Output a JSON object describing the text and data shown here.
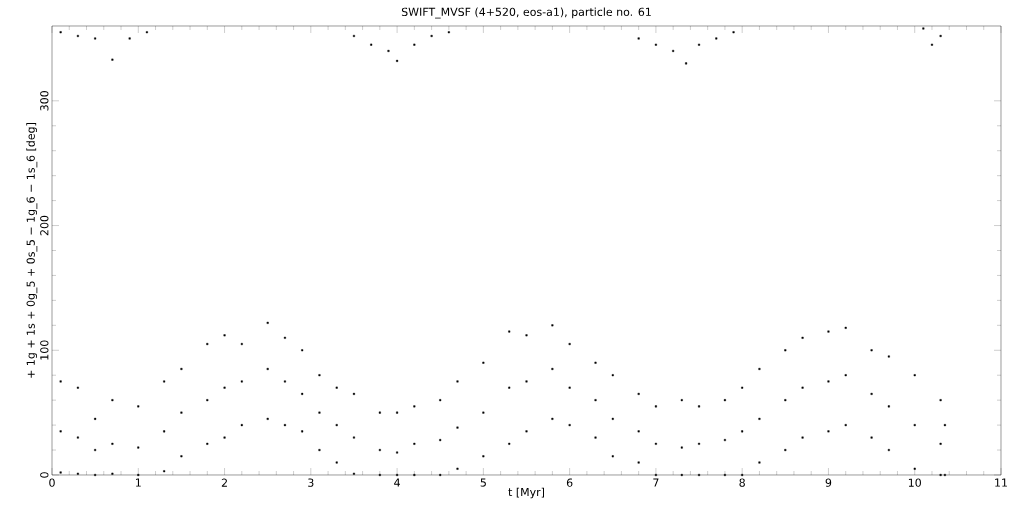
{
  "chart_data": {
    "type": "scatter",
    "title": "SWIFT_MVSF (4+520, eos-a1), particle no. 61",
    "xlabel": "t [Myr]",
    "ylabel": "+ 1g + 1s + 0g_5 + 0s_5 − 1g_6 − 1s_6 [deg]",
    "x": [
      0.1,
      0.1,
      0.1,
      0.3,
      0.3,
      0.3,
      0.5,
      0.5,
      0.5,
      0.7,
      0.7,
      0.7,
      1.0,
      1.0,
      1.0,
      1.3,
      1.3,
      1.3,
      1.5,
      1.5,
      1.5,
      1.8,
      1.8,
      1.8,
      2.0,
      2.0,
      2.0,
      2.2,
      2.2,
      2.2,
      2.5,
      2.5,
      2.5,
      2.7,
      2.7,
      2.7,
      2.9,
      2.9,
      2.9,
      3.1,
      3.1,
      3.1,
      3.3,
      3.3,
      3.3,
      3.5,
      3.5,
      3.5,
      3.8,
      3.8,
      3.8,
      4.0,
      4.0,
      4.0,
      4.2,
      4.2,
      4.2,
      4.5,
      4.5,
      4.5,
      4.7,
      4.7,
      4.7,
      5.0,
      5.0,
      5.0,
      5.3,
      5.3,
      5.3,
      5.5,
      5.5,
      5.5,
      5.8,
      5.8,
      5.8,
      6.0,
      6.0,
      6.0,
      6.3,
      6.3,
      6.3,
      6.5,
      6.5,
      6.5,
      6.8,
      6.8,
      6.8,
      7.0,
      7.0,
      7.0,
      7.3,
      7.3,
      7.3,
      7.5,
      7.5,
      7.5,
      7.8,
      7.8,
      7.8,
      8.0,
      8.0,
      8.0,
      8.2,
      8.2,
      8.2,
      8.5,
      8.5,
      8.5,
      8.7,
      8.7,
      8.7,
      9.0,
      9.0,
      9.0,
      9.2,
      9.2,
      9.2,
      9.5,
      9.5,
      9.5,
      9.7,
      9.7,
      9.7,
      10.0,
      10.0,
      10.0,
      10.3,
      10.3,
      10.3,
      10.35,
      10.35,
      0.1,
      0.3,
      0.5,
      0.7,
      0.9,
      1.1,
      3.5,
      3.7,
      3.9,
      4.0,
      4.2,
      4.4,
      4.6,
      6.8,
      7.0,
      7.2,
      7.35,
      7.5,
      7.7,
      7.9,
      10.1,
      10.2,
      10.3
    ],
    "values": [
      2,
      35,
      75,
      1,
      30,
      70,
      0,
      20,
      45,
      1,
      25,
      60,
      0,
      22,
      55,
      3,
      35,
      75,
      15,
      50,
      85,
      25,
      60,
      105,
      30,
      70,
      112,
      40,
      75,
      105,
      45,
      85,
      122,
      40,
      75,
      110,
      35,
      65,
      100,
      20,
      50,
      80,
      10,
      40,
      70,
      1,
      30,
      65,
      0,
      20,
      50,
      0,
      18,
      50,
      0,
      25,
      55,
      0,
      28,
      60,
      5,
      38,
      75,
      15,
      50,
      90,
      25,
      70,
      115,
      35,
      75,
      112,
      45,
      85,
      120,
      40,
      70,
      105,
      30,
      60,
      90,
      15,
      45,
      80,
      10,
      35,
      65,
      0,
      25,
      55,
      0,
      22,
      60,
      0,
      25,
      55,
      0,
      28,
      60,
      0,
      35,
      70,
      10,
      45,
      85,
      20,
      60,
      100,
      30,
      70,
      110,
      35,
      75,
      115,
      40,
      80,
      118,
      30,
      65,
      100,
      20,
      55,
      95,
      5,
      40,
      80,
      0,
      25,
      60,
      0,
      40,
      355,
      352,
      350,
      333,
      350,
      355,
      352,
      345,
      340,
      332,
      345,
      352,
      355,
      350,
      345,
      340,
      330,
      345,
      350,
      355,
      358,
      345,
      352
    ],
    "color": "#000000",
    "marker": "square",
    "xlim": [
      0,
      11
    ],
    "ylim": [
      0,
      360
    ],
    "xticks": [
      0,
      1,
      2,
      3,
      4,
      5,
      6,
      7,
      8,
      9,
      10,
      11
    ],
    "yticks": [
      0,
      100,
      200,
      300
    ]
  }
}
